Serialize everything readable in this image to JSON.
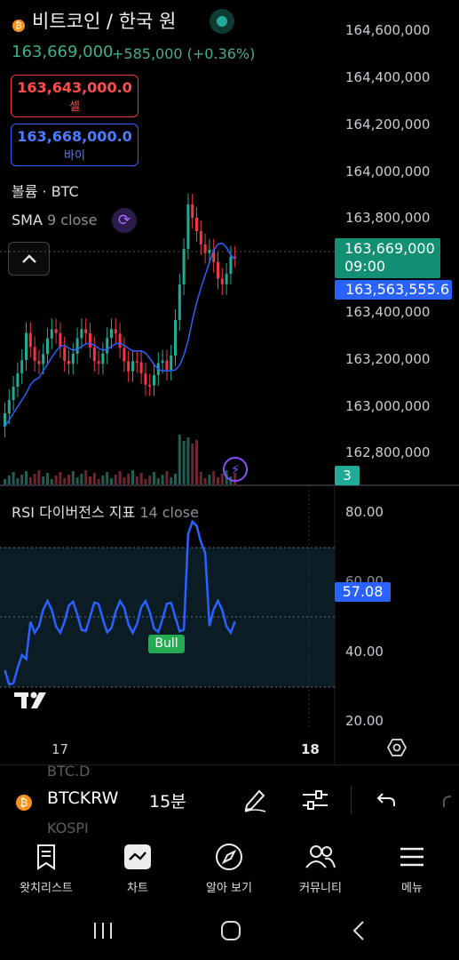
{
  "header": {
    "title": "비트코인 / 한국 원",
    "price": "163,669,000",
    "change": "+585,000 (+0.36%)"
  },
  "trade": {
    "sell_value": "163,643,000.0",
    "sell_label": "셀",
    "buy_value": "163,668,000.0",
    "buy_label": "바이"
  },
  "indicators": {
    "volume_label": "볼륨 · BTC",
    "sma_name": "SMA",
    "sma_params": "9 close",
    "rsi_name": "RSI 다이버전스 지표",
    "rsi_params": "14 close",
    "bull_label": "Bull"
  },
  "price_axis": [
    "164,600,000",
    "164,400,000",
    "164,200,000",
    "164,000,000",
    "163,800,000",
    "163,400,000",
    "163,200,000",
    "163,000,000",
    "162,800,000"
  ],
  "tags": {
    "last_price": "163,669,000",
    "countdown": "09:00",
    "sma_value": "163,563,555.6",
    "volume_value": "3",
    "rsi_value": "57.08"
  },
  "rsi_axis": [
    "80.00",
    "60.00",
    "40.00",
    "20.00"
  ],
  "time_axis": [
    "17",
    "18"
  ],
  "toolbar": {
    "symbol": "BTCKRW",
    "timeframe": "15분",
    "ghost_above": "BTC.D",
    "ghost_below": "KOSPI"
  },
  "nav": [
    {
      "label": "왓치리스트",
      "icon": "watchlist-icon"
    },
    {
      "label": "차트",
      "icon": "chart-icon"
    },
    {
      "label": "알아 보기",
      "icon": "compass-icon"
    },
    {
      "label": "커뮤니티",
      "icon": "community-icon"
    },
    {
      "label": "메뉴",
      "icon": "menu-icon"
    }
  ],
  "colors": {
    "up": "#22ab94",
    "down": "#f23645",
    "sma": "#2962ff",
    "rsi": "#2962ff",
    "background": "#000000"
  }
}
